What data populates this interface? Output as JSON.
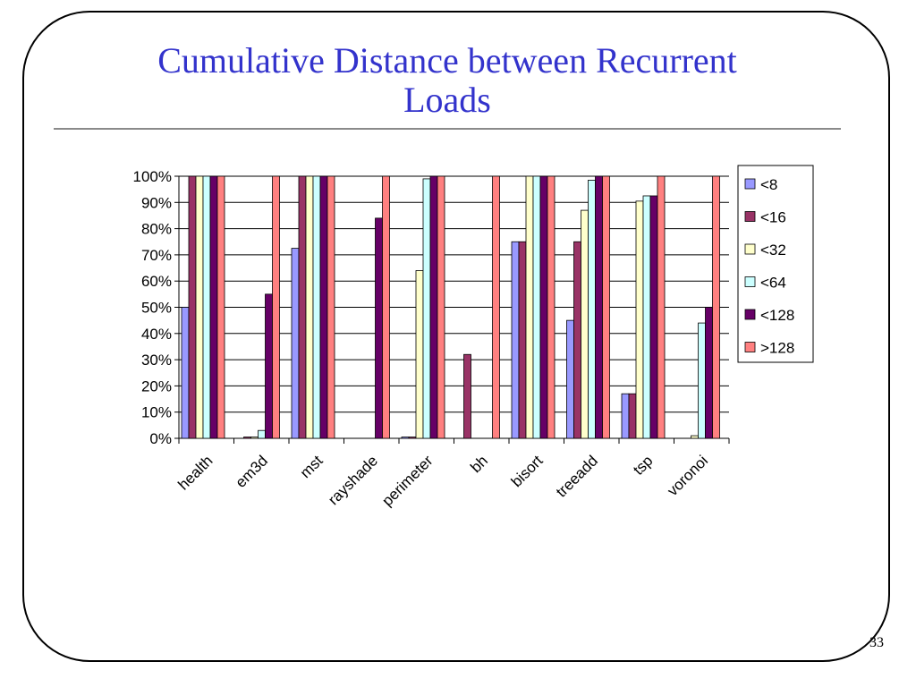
{
  "slide": {
    "title_line1": "Cumulative Distance between Recurrent",
    "title_line2": "Loads",
    "page_number": "33"
  },
  "chart_data": {
    "type": "bar",
    "title": "",
    "xlabel": "",
    "ylabel": "",
    "ylim": [
      0,
      100
    ],
    "y_tick_step": 10,
    "y_tick_format": "percent",
    "grid": "horizontal",
    "legend_position": "right",
    "categories": [
      "health",
      "em3d",
      "mst",
      "rayshade",
      "perimeter",
      "bh",
      "bisort",
      "treeadd",
      "tsp",
      "voronoi"
    ],
    "series": [
      {
        "name": "<8",
        "color": "#9999ff",
        "values": [
          50,
          0,
          72.5,
          0,
          0.5,
          0,
          75,
          45,
          17,
          0
        ]
      },
      {
        "name": "<16",
        "color": "#993366",
        "values": [
          100,
          0.5,
          100,
          0,
          0.5,
          32,
          75,
          75,
          17,
          0
        ]
      },
      {
        "name": "<32",
        "color": "#ffffcc",
        "values": [
          100,
          0.5,
          100,
          0,
          64,
          0,
          100,
          87,
          90.5,
          1
        ]
      },
      {
        "name": "<64",
        "color": "#ccffff",
        "values": [
          100,
          3,
          100,
          0,
          99,
          0,
          100,
          98.5,
          92.5,
          44
        ]
      },
      {
        "name": "<128",
        "color": "#660066",
        "values": [
          100,
          55,
          100,
          84,
          100,
          0,
          100,
          100,
          92.5,
          50
        ]
      },
      {
        "name": ">128",
        "color": "#ff8080",
        "values": [
          100,
          100,
          100,
          100,
          100,
          100,
          100,
          100,
          100,
          100
        ]
      }
    ]
  }
}
